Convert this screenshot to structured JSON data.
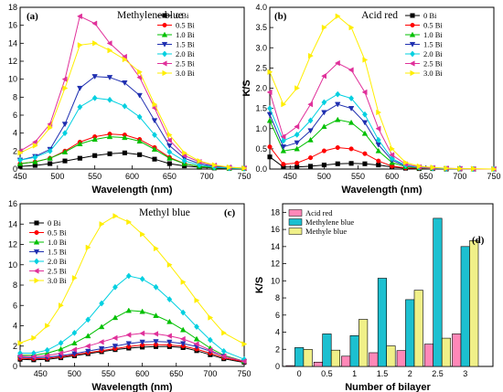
{
  "figure": {
    "colors": {
      "0 Bi": "#000000",
      "0.5 Bi": "#ff0000",
      "1.0 Bi": "#00c000",
      "1.5 Bi": "#1f2fb0",
      "2.0 Bi": "#00d0e0",
      "2.5 Bi": "#e0309a",
      "3.0 Bi": "#ffee00"
    },
    "markers": {
      "0 Bi": "square",
      "0.5 Bi": "circle",
      "1.0 Bi": "triangle-up",
      "1.5 Bi": "triangle-down",
      "2.0 Bi": "diamond",
      "2.5 Bi": "triangle-left",
      "3.0 Bi": "triangle-right"
    },
    "bar_colors": {
      "Acid red": "#ff88b8",
      "Methylene blue": "#1cc0d0",
      "Methyle blue": "#f0f088"
    }
  },
  "chart_data": [
    {
      "type": "line",
      "panel_label": "(a)",
      "title": "Methylene blue",
      "xlabel": "Wavelength (nm)",
      "ylabel": "K/S",
      "xlim": [
        450,
        750
      ],
      "ylim": [
        0,
        18
      ],
      "xticks": [
        450,
        500,
        550,
        600,
        650,
        700,
        750
      ],
      "yticks": [
        0,
        2,
        4,
        6,
        8,
        10,
        12,
        14,
        16,
        18
      ],
      "legend_position": "top-right",
      "series": [
        {
          "name": "0 Bi",
          "x": [
            450,
            470,
            490,
            510,
            530,
            550,
            570,
            590,
            610,
            630,
            650,
            670,
            690,
            710,
            730,
            750
          ],
          "y": [
            0.3,
            0.4,
            0.6,
            0.9,
            1.2,
            1.5,
            1.7,
            1.8,
            1.6,
            1.1,
            0.6,
            0.35,
            0.2,
            0.12,
            0.08,
            0.05
          ]
        },
        {
          "name": "0.5 Bi",
          "x": [
            450,
            470,
            490,
            510,
            530,
            550,
            570,
            590,
            610,
            630,
            650,
            670,
            690,
            710,
            730,
            750
          ],
          "y": [
            0.6,
            0.8,
            1.2,
            2.0,
            3.0,
            3.6,
            3.9,
            3.8,
            3.3,
            2.4,
            1.3,
            0.6,
            0.3,
            0.15,
            0.1,
            0.05
          ]
        },
        {
          "name": "1.0 Bi",
          "x": [
            450,
            470,
            490,
            510,
            530,
            550,
            570,
            590,
            610,
            630,
            650,
            670,
            690,
            710,
            730,
            750
          ],
          "y": [
            0.6,
            0.8,
            1.2,
            1.9,
            2.8,
            3.3,
            3.6,
            3.5,
            3.1,
            2.2,
            1.2,
            0.6,
            0.3,
            0.15,
            0.1,
            0.05
          ]
        },
        {
          "name": "1.5 Bi",
          "x": [
            450,
            470,
            490,
            510,
            530,
            550,
            570,
            590,
            610,
            630,
            650,
            670,
            690,
            710,
            730,
            750
          ],
          "y": [
            1.0,
            1.4,
            2.2,
            5.0,
            9.0,
            10.3,
            10.2,
            9.6,
            8.2,
            5.4,
            2.6,
            1.2,
            0.6,
            0.3,
            0.15,
            0.08
          ]
        },
        {
          "name": "2.0 Bi",
          "x": [
            450,
            470,
            490,
            510,
            530,
            550,
            570,
            590,
            610,
            630,
            650,
            670,
            690,
            710,
            730,
            750
          ],
          "y": [
            1.0,
            1.3,
            2.0,
            4.0,
            6.9,
            7.9,
            7.7,
            7.0,
            5.8,
            3.8,
            1.9,
            0.9,
            0.45,
            0.2,
            0.1,
            0.05
          ]
        },
        {
          "name": "2.5 Bi",
          "x": [
            450,
            470,
            490,
            510,
            530,
            550,
            570,
            590,
            610,
            630,
            650,
            670,
            690,
            710,
            730,
            750
          ],
          "y": [
            2.0,
            3.0,
            5.0,
            10.0,
            17.0,
            16.2,
            14.0,
            12.5,
            10.2,
            6.8,
            3.2,
            1.5,
            0.8,
            0.4,
            0.2,
            0.1
          ]
        },
        {
          "name": "3.0 Bi",
          "x": [
            450,
            470,
            490,
            510,
            530,
            550,
            570,
            590,
            610,
            630,
            650,
            670,
            690,
            710,
            730,
            750
          ],
          "y": [
            1.8,
            2.6,
            4.6,
            9.0,
            13.8,
            14.0,
            13.2,
            12.2,
            10.8,
            7.2,
            3.8,
            1.8,
            0.9,
            0.45,
            0.2,
            0.1
          ]
        }
      ]
    },
    {
      "type": "line",
      "panel_label": "(b)",
      "title": "Acid red",
      "xlabel": "Wavelength (nm)",
      "ylabel": "K/S",
      "xlim": [
        420,
        750
      ],
      "ylim": [
        0,
        4.0
      ],
      "xticks": [
        450,
        500,
        550,
        600,
        650,
        700,
        750
      ],
      "yticks": [
        0.0,
        0.5,
        1.0,
        1.5,
        2.0,
        2.5,
        3.0,
        3.5,
        4.0
      ],
      "legend_position": "top-right",
      "series": [
        {
          "name": "0 Bi",
          "x": [
            420,
            440,
            460,
            480,
            500,
            520,
            540,
            560,
            580,
            600,
            620,
            640,
            660,
            680,
            700,
            720,
            750
          ],
          "y": [
            0.3,
            0.05,
            0.05,
            0.07,
            0.1,
            0.13,
            0.14,
            0.13,
            0.1,
            0.05,
            0.02,
            0.01,
            0.01,
            0.0,
            0.0,
            0.0,
            0.0
          ]
        },
        {
          "name": "0.5 Bi",
          "x": [
            420,
            440,
            460,
            480,
            500,
            520,
            540,
            560,
            580,
            600,
            620,
            640,
            660,
            680,
            700,
            720,
            750
          ],
          "y": [
            0.55,
            0.12,
            0.15,
            0.28,
            0.45,
            0.53,
            0.5,
            0.38,
            0.2,
            0.07,
            0.03,
            0.02,
            0.01,
            0.01,
            0.0,
            0.0,
            0.0
          ]
        },
        {
          "name": "1.0 Bi",
          "x": [
            420,
            440,
            460,
            480,
            500,
            520,
            540,
            560,
            580,
            600,
            620,
            640,
            660,
            680,
            700,
            720,
            750
          ],
          "y": [
            1.2,
            0.45,
            0.5,
            0.72,
            1.05,
            1.22,
            1.15,
            0.88,
            0.45,
            0.16,
            0.06,
            0.03,
            0.02,
            0.01,
            0.01,
            0.0,
            0.0
          ]
        },
        {
          "name": "1.5 Bi",
          "x": [
            420,
            440,
            460,
            480,
            500,
            520,
            540,
            560,
            580,
            600,
            620,
            640,
            660,
            680,
            700,
            720,
            750
          ],
          "y": [
            1.35,
            0.55,
            0.65,
            0.95,
            1.4,
            1.6,
            1.5,
            1.15,
            0.6,
            0.22,
            0.08,
            0.04,
            0.02,
            0.01,
            0.01,
            0.0,
            0.0
          ]
        },
        {
          "name": "2.0 Bi",
          "x": [
            420,
            440,
            460,
            480,
            500,
            520,
            540,
            560,
            580,
            600,
            620,
            640,
            660,
            680,
            700,
            720,
            750
          ],
          "y": [
            1.5,
            0.7,
            0.85,
            1.2,
            1.65,
            1.85,
            1.75,
            1.35,
            0.72,
            0.26,
            0.09,
            0.04,
            0.02,
            0.01,
            0.01,
            0.0,
            0.0
          ]
        },
        {
          "name": "2.5 Bi",
          "x": [
            420,
            440,
            460,
            480,
            500,
            520,
            540,
            560,
            580,
            600,
            620,
            640,
            660,
            680,
            700,
            720,
            750
          ],
          "y": [
            1.9,
            0.8,
            1.05,
            1.6,
            2.3,
            2.62,
            2.45,
            1.9,
            1.0,
            0.35,
            0.12,
            0.05,
            0.03,
            0.02,
            0.01,
            0.0,
            0.0
          ]
        },
        {
          "name": "3.0 Bi",
          "x": [
            420,
            440,
            460,
            480,
            500,
            520,
            540,
            560,
            580,
            600,
            620,
            640,
            660,
            680,
            700,
            720,
            750
          ],
          "y": [
            2.4,
            1.6,
            2.0,
            2.8,
            3.5,
            3.78,
            3.5,
            2.7,
            1.4,
            0.5,
            0.16,
            0.07,
            0.04,
            0.02,
            0.01,
            0.01,
            0.0
          ]
        }
      ]
    },
    {
      "type": "line",
      "panel_label": "(c)",
      "title": "Methyl blue",
      "xlabel": "Wavelength (nm)",
      "ylabel": "K/S",
      "xlim": [
        420,
        750
      ],
      "ylim": [
        0,
        16
      ],
      "xticks": [
        450,
        500,
        550,
        600,
        650,
        700,
        750
      ],
      "yticks": [
        0,
        2,
        4,
        6,
        8,
        10,
        12,
        14,
        16
      ],
      "legend_position": "top-left",
      "series": [
        {
          "name": "0 Bi",
          "x": [
            420,
            440,
            460,
            480,
            500,
            520,
            540,
            560,
            580,
            600,
            620,
            640,
            660,
            680,
            700,
            720,
            750
          ],
          "y": [
            0.7,
            0.65,
            0.7,
            0.85,
            1.05,
            1.25,
            1.45,
            1.65,
            1.8,
            1.9,
            1.95,
            1.95,
            1.85,
            1.55,
            1.15,
            0.75,
            0.4
          ]
        },
        {
          "name": "0.5 Bi",
          "x": [
            420,
            440,
            460,
            480,
            500,
            520,
            540,
            560,
            580,
            600,
            620,
            640,
            660,
            680,
            700,
            720,
            750
          ],
          "y": [
            0.8,
            0.75,
            0.8,
            0.95,
            1.15,
            1.35,
            1.55,
            1.75,
            1.95,
            2.1,
            2.15,
            2.1,
            2.0,
            1.7,
            1.3,
            0.85,
            0.45
          ]
        },
        {
          "name": "1.0 Bi",
          "x": [
            420,
            440,
            460,
            480,
            500,
            520,
            540,
            560,
            580,
            600,
            620,
            640,
            660,
            680,
            700,
            720,
            750
          ],
          "y": [
            1.1,
            1.1,
            1.3,
            1.7,
            2.3,
            3.0,
            3.9,
            4.8,
            5.5,
            5.4,
            5.0,
            4.4,
            3.6,
            2.7,
            1.8,
            1.1,
            0.5
          ]
        },
        {
          "name": "1.5 Bi",
          "x": [
            420,
            440,
            460,
            480,
            500,
            520,
            540,
            560,
            580,
            600,
            620,
            640,
            660,
            680,
            700,
            720,
            750
          ],
          "y": [
            0.9,
            0.85,
            0.9,
            1.05,
            1.25,
            1.5,
            1.75,
            2.0,
            2.25,
            2.4,
            2.45,
            2.4,
            2.25,
            1.95,
            1.5,
            1.0,
            0.5
          ]
        },
        {
          "name": "2.0 Bi",
          "x": [
            420,
            440,
            460,
            480,
            500,
            520,
            540,
            560,
            580,
            600,
            620,
            640,
            660,
            680,
            700,
            720,
            750
          ],
          "y": [
            1.3,
            1.3,
            1.6,
            2.3,
            3.3,
            4.6,
            6.2,
            7.8,
            8.9,
            8.6,
            7.8,
            6.6,
            5.3,
            3.9,
            2.6,
            1.5,
            0.7
          ]
        },
        {
          "name": "2.5 Bi",
          "x": [
            420,
            440,
            460,
            480,
            500,
            520,
            540,
            560,
            580,
            600,
            620,
            640,
            660,
            680,
            700,
            720,
            750
          ],
          "y": [
            1.0,
            0.95,
            1.05,
            1.3,
            1.65,
            2.0,
            2.4,
            2.8,
            3.1,
            3.25,
            3.2,
            3.0,
            2.7,
            2.2,
            1.6,
            1.0,
            0.5
          ]
        },
        {
          "name": "3.0 Bi",
          "x": [
            420,
            440,
            460,
            480,
            500,
            520,
            540,
            560,
            580,
            600,
            620,
            640,
            660,
            680,
            700,
            720,
            750
          ],
          "y": [
            2.3,
            2.8,
            4.0,
            6.0,
            8.7,
            11.7,
            14.0,
            14.8,
            14.2,
            13.0,
            11.6,
            10.0,
            8.3,
            6.5,
            4.8,
            3.3,
            2.2
          ]
        }
      ]
    },
    {
      "type": "bar",
      "panel_label": "(d)",
      "xlabel": "Number of bilayer",
      "ylabel": "K/S",
      "categories": [
        "0",
        "0.5",
        "1",
        "1.5",
        "2",
        "2.5",
        "3"
      ],
      "ylim": [
        0,
        19
      ],
      "yticks": [
        0,
        2,
        4,
        6,
        8,
        10,
        12,
        14,
        16,
        18
      ],
      "legend_position": "top-left",
      "series": [
        {
          "name": "Acid red",
          "values": [
            0.1,
            0.5,
            1.2,
            1.6,
            1.85,
            2.6,
            3.8
          ]
        },
        {
          "name": "Methylene blue",
          "values": [
            2.2,
            3.8,
            3.6,
            10.3,
            7.8,
            17.3,
            14.0
          ]
        },
        {
          "name": "Methyle blue",
          "values": [
            2.0,
            1.9,
            5.5,
            2.4,
            8.9,
            3.3,
            14.7
          ]
        }
      ]
    }
  ]
}
